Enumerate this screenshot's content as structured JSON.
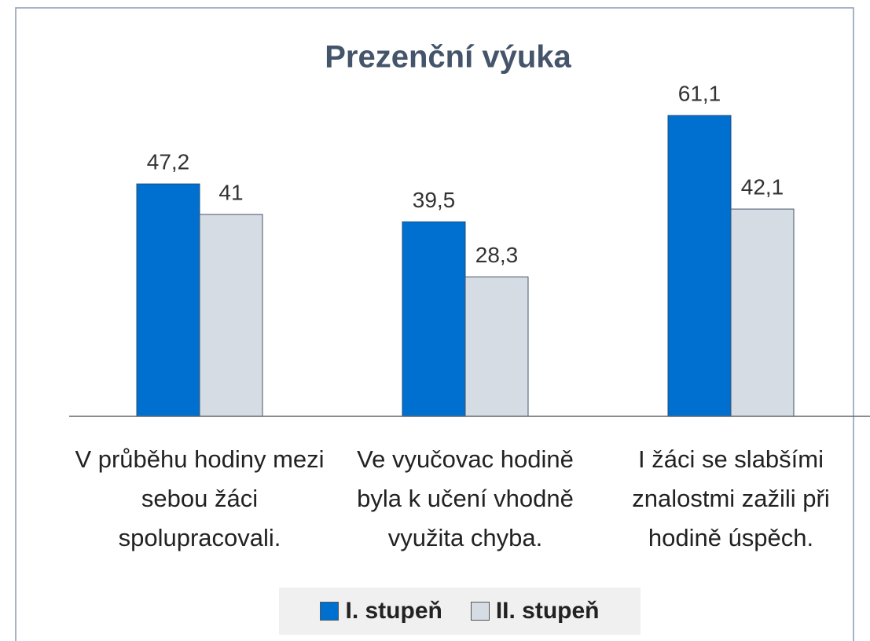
{
  "chart_data": {
    "type": "bar",
    "title": "Prezenční výuka",
    "categories": [
      "V průběhu hodiny mezi sebou žáci spolupracovali.",
      "Ve vyučovac hodině byla k učení vhodně využita chyba.",
      "I žáci se slabšími znalostmi zažili při hodině úspěch."
    ],
    "series": [
      {
        "name": "I. stupeň",
        "color": "#0070d0",
        "values": [
          47.2,
          39.5,
          61.1
        ],
        "value_labels": [
          "47,2",
          "39,5",
          "61,1"
        ]
      },
      {
        "name": "II. stupeň",
        "color": "#d6dce4",
        "values": [
          41,
          28.3,
          42.1
        ],
        "value_labels": [
          "41",
          "28,3",
          "42,1"
        ]
      }
    ],
    "legend": "bottom"
  }
}
